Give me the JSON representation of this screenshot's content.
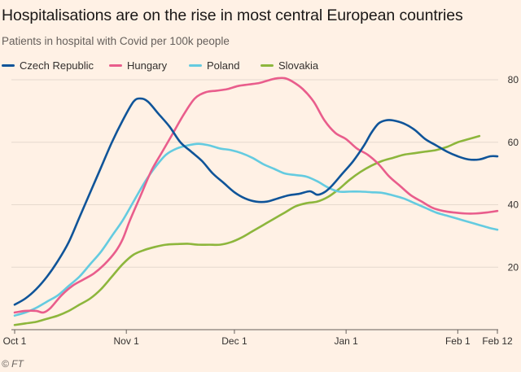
{
  "title": "Hospitalisations are on the rise in most central European countries",
  "subtitle": "Patients in hospital with Covid per 100k people",
  "source": "© FT",
  "chart_data": {
    "type": "line",
    "ylim": [
      0,
      80
    ],
    "yticks": [
      20,
      40,
      60,
      80
    ],
    "xlim": [
      0,
      134
    ],
    "xticks": [
      {
        "label": "Oct 1",
        "day": 0
      },
      {
        "label": "Nov 1",
        "day": 31
      },
      {
        "label": "Dec 1",
        "day": 61
      },
      {
        "label": "Jan 1",
        "day": 92
      },
      {
        "label": "Feb 1",
        "day": 123
      },
      {
        "label": "Feb 12",
        "day": 134
      }
    ],
    "grid": true,
    "series": [
      {
        "name": "Czech Republic",
        "color": "#0f5499",
        "points": [
          [
            0,
            8
          ],
          [
            3,
            10
          ],
          [
            6,
            13
          ],
          [
            9,
            17
          ],
          [
            12,
            22
          ],
          [
            15,
            28
          ],
          [
            18,
            36
          ],
          [
            21,
            44
          ],
          [
            24,
            52
          ],
          [
            27,
            60
          ],
          [
            30,
            67
          ],
          [
            33,
            73
          ],
          [
            35,
            74
          ],
          [
            37,
            73
          ],
          [
            40,
            69
          ],
          [
            43,
            65
          ],
          [
            46,
            60
          ],
          [
            49,
            57
          ],
          [
            52,
            54
          ],
          [
            55,
            50
          ],
          [
            58,
            47
          ],
          [
            61,
            44
          ],
          [
            64,
            42
          ],
          [
            67,
            41
          ],
          [
            70,
            41
          ],
          [
            73,
            42
          ],
          [
            76,
            43
          ],
          [
            79,
            43.5
          ],
          [
            82,
            44.3
          ],
          [
            84,
            43.2
          ],
          [
            86,
            44
          ],
          [
            88,
            46
          ],
          [
            91,
            50
          ],
          [
            94,
            54
          ],
          [
            97,
            59
          ],
          [
            99,
            63
          ],
          [
            101,
            66
          ],
          [
            103,
            67
          ],
          [
            105,
            67
          ],
          [
            108,
            66
          ],
          [
            111,
            64
          ],
          [
            114,
            61
          ],
          [
            117,
            59
          ],
          [
            120,
            57
          ],
          [
            123,
            55.5
          ],
          [
            126,
            54.5
          ],
          [
            129,
            54.5
          ],
          [
            132,
            55.5
          ],
          [
            134,
            55.5
          ]
        ]
      },
      {
        "name": "Hungary",
        "color": "#e95d8c",
        "points": [
          [
            0,
            5.5
          ],
          [
            3,
            6
          ],
          [
            6,
            6
          ],
          [
            8,
            5.5
          ],
          [
            10,
            7
          ],
          [
            13,
            11
          ],
          [
            16,
            14
          ],
          [
            19,
            16
          ],
          [
            22,
            18
          ],
          [
            25,
            21
          ],
          [
            28,
            25
          ],
          [
            30,
            29
          ],
          [
            32,
            35
          ],
          [
            35,
            43
          ],
          [
            38,
            51
          ],
          [
            41,
            57
          ],
          [
            44,
            63
          ],
          [
            47,
            69
          ],
          [
            50,
            74
          ],
          [
            53,
            76
          ],
          [
            56,
            76.5
          ],
          [
            59,
            77
          ],
          [
            62,
            78
          ],
          [
            65,
            78.5
          ],
          [
            68,
            79
          ],
          [
            71,
            80
          ],
          [
            73,
            80.5
          ],
          [
            75,
            80.5
          ],
          [
            77,
            79.5
          ],
          [
            80,
            77
          ],
          [
            83,
            73
          ],
          [
            86,
            67
          ],
          [
            89,
            63
          ],
          [
            92,
            61
          ],
          [
            95,
            58
          ],
          [
            98,
            56
          ],
          [
            101,
            53
          ],
          [
            104,
            49
          ],
          [
            107,
            46
          ],
          [
            110,
            43
          ],
          [
            113,
            41
          ],
          [
            116,
            39
          ],
          [
            119,
            38
          ],
          [
            122,
            37.5
          ],
          [
            125,
            37.2
          ],
          [
            128,
            37.2
          ],
          [
            131,
            37.5
          ],
          [
            134,
            38
          ]
        ]
      },
      {
        "name": "Poland",
        "color": "#64cbe0",
        "points": [
          [
            0,
            4.5
          ],
          [
            3,
            5.5
          ],
          [
            6,
            7
          ],
          [
            9,
            9
          ],
          [
            12,
            11
          ],
          [
            15,
            14
          ],
          [
            18,
            17
          ],
          [
            21,
            21
          ],
          [
            24,
            25
          ],
          [
            27,
            30
          ],
          [
            30,
            35
          ],
          [
            33,
            41
          ],
          [
            36,
            47
          ],
          [
            39,
            52
          ],
          [
            42,
            56
          ],
          [
            45,
            58
          ],
          [
            48,
            59
          ],
          [
            51,
            59.5
          ],
          [
            54,
            59
          ],
          [
            57,
            58
          ],
          [
            60,
            57.5
          ],
          [
            63,
            56.5
          ],
          [
            66,
            55
          ],
          [
            69,
            53
          ],
          [
            72,
            51.5
          ],
          [
            75,
            50
          ],
          [
            78,
            49.5
          ],
          [
            81,
            49
          ],
          [
            84,
            47.5
          ],
          [
            87,
            45.5
          ],
          [
            90,
            44.2
          ],
          [
            93,
            44.2
          ],
          [
            96,
            44.2
          ],
          [
            99,
            44
          ],
          [
            102,
            43.8
          ],
          [
            105,
            43
          ],
          [
            108,
            42
          ],
          [
            111,
            40.5
          ],
          [
            114,
            39
          ],
          [
            117,
            37.5
          ],
          [
            120,
            36.5
          ],
          [
            123,
            35.5
          ],
          [
            126,
            34.5
          ],
          [
            129,
            33.5
          ],
          [
            132,
            32.5
          ],
          [
            134,
            32
          ]
        ]
      },
      {
        "name": "Slovakia",
        "color": "#8db63c",
        "points": [
          [
            0,
            1.5
          ],
          [
            3,
            2
          ],
          [
            6,
            2.5
          ],
          [
            9,
            3.5
          ],
          [
            12,
            4.5
          ],
          [
            15,
            6
          ],
          [
            18,
            8
          ],
          [
            21,
            10
          ],
          [
            24,
            13
          ],
          [
            27,
            17
          ],
          [
            30,
            21
          ],
          [
            33,
            24
          ],
          [
            36,
            25.5
          ],
          [
            39,
            26.5
          ],
          [
            42,
            27.2
          ],
          [
            45,
            27.4
          ],
          [
            48,
            27.5
          ],
          [
            51,
            27.2
          ],
          [
            54,
            27.2
          ],
          [
            57,
            27.2
          ],
          [
            60,
            28
          ],
          [
            63,
            29.5
          ],
          [
            66,
            31.5
          ],
          [
            69,
            33.5
          ],
          [
            72,
            35.5
          ],
          [
            75,
            37.5
          ],
          [
            78,
            39.5
          ],
          [
            81,
            40.5
          ],
          [
            84,
            41
          ],
          [
            87,
            42.5
          ],
          [
            90,
            45
          ],
          [
            93,
            48
          ],
          [
            96,
            50.5
          ],
          [
            99,
            52.5
          ],
          [
            102,
            54
          ],
          [
            105,
            55
          ],
          [
            108,
            56
          ],
          [
            111,
            56.5
          ],
          [
            114,
            57
          ],
          [
            117,
            57.5
          ],
          [
            120,
            58.5
          ],
          [
            123,
            60
          ],
          [
            126,
            61
          ],
          [
            129,
            62
          ]
        ]
      }
    ]
  }
}
